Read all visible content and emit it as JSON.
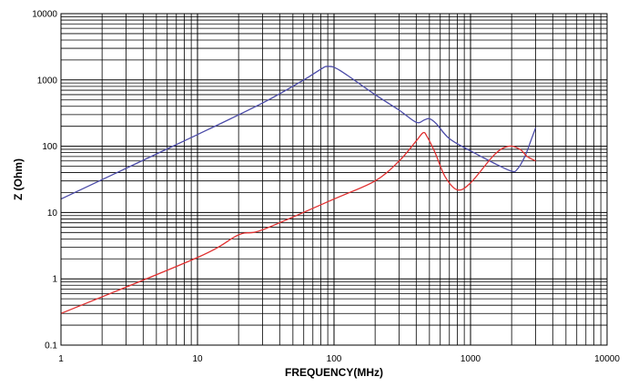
{
  "chart_data": {
    "type": "line",
    "title": "",
    "xlabel": "FREQUENCY(MHz)",
    "ylabel": "Z (Ohm)",
    "xscale": "log",
    "yscale": "log",
    "xlim": [
      1,
      10000
    ],
    "ylim": [
      0.1,
      10000
    ],
    "grid": true,
    "legend": "none",
    "x_ticks": [
      "1",
      "10",
      "100",
      "1000",
      "10000"
    ],
    "y_ticks": [
      "0.1",
      "1",
      "10",
      "100",
      "1000",
      "10000"
    ],
    "series": [
      {
        "color": "#4b4ba8",
        "points": [
          [
            1,
            16
          ],
          [
            10,
            150
          ],
          [
            30,
            450
          ],
          [
            60,
            1000
          ],
          [
            80,
            1450
          ],
          [
            90,
            1600
          ],
          [
            110,
            1400
          ],
          [
            200,
            600
          ],
          [
            300,
            350
          ],
          [
            400,
            230
          ],
          [
            460,
            250
          ],
          [
            500,
            260
          ],
          [
            560,
            220
          ],
          [
            700,
            130
          ],
          [
            1000,
            85
          ],
          [
            1500,
            55
          ],
          [
            2000,
            42
          ],
          [
            2200,
            45
          ],
          [
            2500,
            70
          ],
          [
            2800,
            130
          ],
          [
            3000,
            190
          ]
        ]
      },
      {
        "color": "#e03030",
        "points": [
          [
            1,
            0.3
          ],
          [
            10,
            2.1
          ],
          [
            20,
            4.6
          ],
          [
            30,
            5.5
          ],
          [
            100,
            16
          ],
          [
            200,
            30
          ],
          [
            300,
            60
          ],
          [
            400,
            120
          ],
          [
            450,
            160
          ],
          [
            480,
            140
          ],
          [
            550,
            80
          ],
          [
            650,
            35
          ],
          [
            800,
            22
          ],
          [
            1000,
            28
          ],
          [
            1500,
            75
          ],
          [
            1900,
            100
          ],
          [
            2300,
            90
          ],
          [
            2600,
            70
          ],
          [
            3000,
            60
          ]
        ]
      }
    ]
  }
}
